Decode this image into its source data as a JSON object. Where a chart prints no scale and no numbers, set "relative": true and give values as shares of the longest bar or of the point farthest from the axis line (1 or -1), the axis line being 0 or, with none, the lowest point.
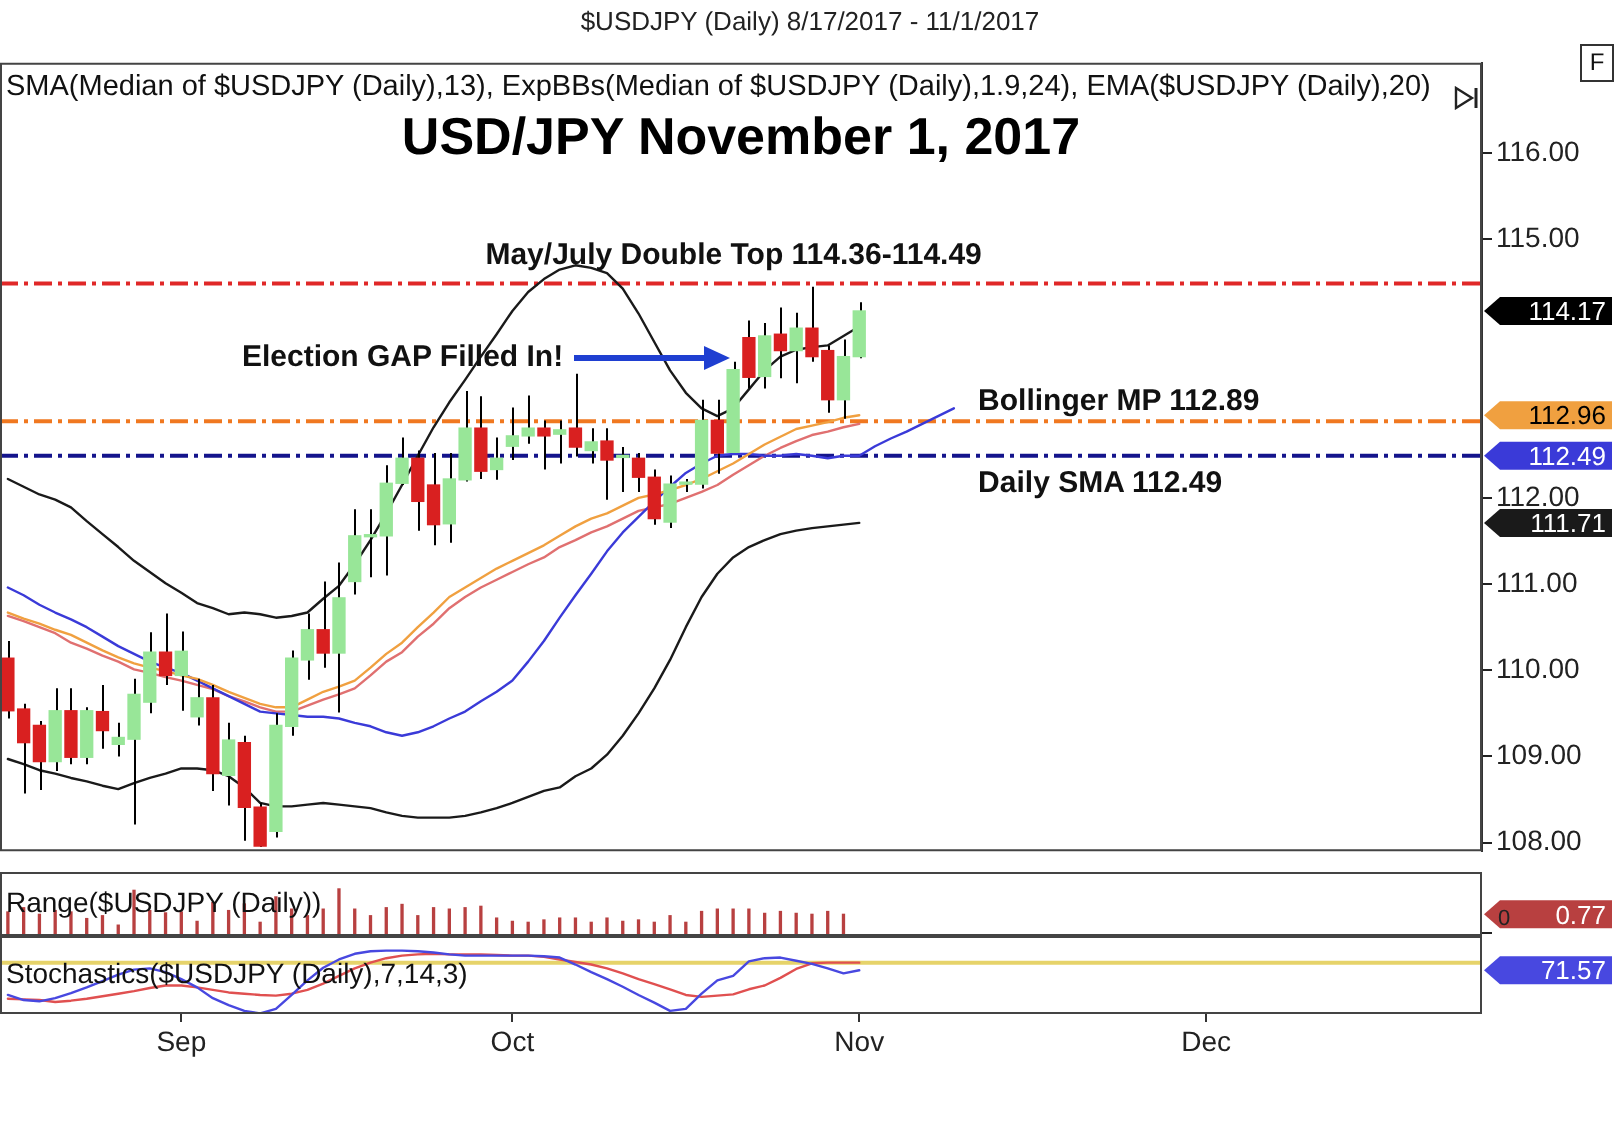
{
  "chart_data": [
    {
      "type": "candlestick",
      "title": "USD/JPY November 1, 2017",
      "subtitle": "$USDJPY (Daily) 8/17/2017 - 11/1/2017",
      "categories": [
        null,
        null,
        null,
        null,
        null,
        null,
        null,
        null,
        null,
        null,
        null,
        null,
        null,
        null,
        null,
        null,
        null,
        null,
        null,
        null,
        null,
        null,
        null,
        null,
        null,
        null,
        null,
        null,
        null,
        null,
        null,
        null,
        null,
        null,
        null,
        null,
        null,
        null,
        null,
        null,
        null,
        null,
        null,
        null,
        null,
        null,
        null,
        null,
        null,
        null,
        null,
        null,
        null,
        null,
        null,
        null,
        null,
        null,
        null,
        null,
        null,
        null,
        null,
        null,
        null,
        null,
        null,
        null,
        null,
        null,
        null,
        null,
        null,
        null,
        null,
        null,
        null,
        null,
        null,
        null,
        null,
        null,
        null,
        null,
        null,
        null,
        null,
        null,
        null,
        null,
        null,
        null,
        null,
        null
      ],
      "ohlc": [
        [
          110.14,
          110.34,
          109.44,
          109.53
        ],
        [
          109.55,
          109.61,
          108.57,
          109.16
        ],
        [
          109.36,
          109.41,
          108.61,
          108.94
        ],
        [
          108.94,
          109.79,
          108.83,
          109.53
        ],
        [
          109.53,
          109.79,
          108.91,
          108.99
        ],
        [
          108.99,
          109.57,
          108.91,
          109.53
        ],
        [
          109.52,
          109.83,
          109.09,
          109.3
        ],
        [
          109.14,
          109.39,
          109.0,
          109.22
        ],
        [
          109.2,
          109.9,
          108.21,
          109.72
        ],
        [
          109.63,
          110.44,
          109.5,
          110.21
        ],
        [
          110.21,
          110.66,
          109.83,
          109.94
        ],
        [
          109.94,
          110.45,
          109.53,
          110.22
        ],
        [
          109.46,
          109.9,
          109.36,
          109.68
        ],
        [
          109.68,
          109.83,
          108.6,
          108.8
        ],
        [
          108.78,
          109.39,
          108.43,
          109.19
        ],
        [
          109.16,
          109.24,
          108.02,
          108.41
        ],
        [
          108.41,
          108.46,
          107.95,
          107.96
        ],
        [
          108.13,
          109.5,
          108.06,
          109.36
        ],
        [
          109.35,
          110.23,
          109.24,
          110.14
        ],
        [
          110.12,
          110.66,
          109.89,
          110.47
        ],
        [
          110.47,
          111.03,
          110.03,
          110.2
        ],
        [
          110.2,
          111.25,
          109.51,
          110.84
        ],
        [
          111.03,
          111.87,
          110.88,
          111.56
        ],
        [
          111.55,
          111.87,
          111.08,
          111.57
        ],
        [
          111.56,
          112.38,
          111.1,
          112.17
        ],
        [
          112.17,
          112.7,
          112.15,
          112.46
        ],
        [
          112.46,
          112.55,
          111.62,
          111.96
        ],
        [
          112.15,
          112.52,
          111.45,
          111.69
        ],
        [
          111.7,
          112.52,
          111.48,
          112.22
        ],
        [
          112.21,
          113.24,
          112.19,
          112.81
        ],
        [
          112.81,
          113.18,
          112.22,
          112.31
        ],
        [
          112.33,
          112.7,
          112.21,
          112.46
        ],
        [
          112.6,
          113.05,
          112.44,
          112.72
        ],
        [
          112.72,
          113.19,
          112.63,
          112.81
        ],
        [
          112.81,
          112.9,
          112.33,
          112.72
        ],
        [
          112.74,
          112.9,
          112.4,
          112.79
        ],
        [
          112.81,
          113.44,
          112.48,
          112.59
        ],
        [
          112.55,
          112.81,
          112.4,
          112.65
        ],
        [
          112.66,
          112.81,
          111.98,
          112.44
        ],
        [
          112.47,
          112.59,
          112.07,
          112.48
        ],
        [
          112.46,
          112.52,
          112.07,
          112.24
        ],
        [
          112.24,
          112.33,
          111.69,
          111.76
        ],
        [
          111.72,
          112.26,
          111.65,
          112.16
        ],
        [
          112.16,
          112.22,
          112.07,
          112.17
        ],
        [
          112.16,
          113.14,
          112.11,
          112.9
        ],
        [
          112.9,
          113.14,
          112.28,
          112.52
        ],
        [
          112.53,
          113.58,
          112.52,
          113.49
        ],
        [
          113.86,
          114.06,
          113.27,
          113.4
        ],
        [
          113.41,
          114.03,
          113.27,
          113.88
        ],
        [
          113.9,
          114.21,
          113.39,
          113.71
        ],
        [
          113.71,
          114.15,
          113.33,
          113.97
        ],
        [
          113.97,
          114.45,
          113.58,
          113.64
        ],
        [
          113.71,
          113.77,
          112.99,
          113.14
        ],
        [
          113.14,
          113.84,
          112.92,
          113.64
        ],
        [
          113.64,
          114.27,
          113.62,
          114.17
        ],
        null,
        null,
        null,
        null,
        null,
        null,
        null,
        null,
        null,
        null,
        null,
        null,
        null,
        null,
        null,
        null,
        null,
        null,
        null,
        null,
        null,
        null,
        null,
        null,
        null,
        null,
        null,
        null,
        null,
        null,
        null,
        null,
        null,
        null,
        null,
        null,
        null,
        null,
        null
      ],
      "color": "#000000",
      "colors": [
        "#d92020",
        "#d92020",
        "#d92020",
        "#98e698",
        "#d92020",
        "#98e698",
        "#d92020",
        "#98e698",
        "#98e698",
        "#98e698",
        "#d92020",
        "#98e698",
        "#98e698",
        "#d92020",
        "#98e698",
        "#d92020",
        "#d92020",
        "#98e698",
        "#98e698",
        "#98e698",
        "#d92020",
        "#98e698",
        "#98e698",
        "#98e698",
        "#98e698",
        "#98e698",
        "#d92020",
        "#d92020",
        "#98e698",
        "#98e698",
        "#d92020",
        "#98e698",
        "#98e698",
        "#98e698",
        "#d92020",
        "#98e698",
        "#d92020",
        "#98e698",
        "#d92020",
        "#98e698",
        "#d92020",
        "#d92020",
        "#98e698",
        "#98e698",
        "#98e698",
        "#d92020",
        "#98e698",
        "#d92020",
        "#98e698",
        "#d92020",
        "#98e698",
        "#d92020",
        "#d92020",
        "#98e698",
        "#98e698",
        null,
        null,
        null,
        null,
        null,
        null,
        null,
        null,
        null,
        null,
        null,
        null,
        null,
        null,
        null,
        null,
        null,
        null,
        null,
        null,
        null,
        null,
        null,
        null,
        null,
        null,
        null,
        null,
        null,
        null,
        null,
        null,
        null,
        null,
        null,
        null,
        null,
        null,
        null
      ],
      "series": [
        {
          "type": "line",
          "color": "#1a1a1a",
          "values": [
            112.22,
            112.13,
            112.04,
            111.98,
            111.89,
            111.73,
            111.58,
            111.43,
            111.27,
            111.14,
            111.01,
            110.9,
            110.78,
            110.72,
            110.65,
            110.67,
            110.65,
            110.61,
            110.63,
            110.67,
            110.83,
            110.98,
            111.23,
            111.51,
            111.82,
            112.15,
            112.49,
            112.82,
            113.11,
            113.37,
            113.64,
            113.9,
            114.17,
            114.39,
            114.54,
            114.65,
            114.7,
            114.67,
            114.61,
            114.43,
            114.14,
            113.81,
            113.48,
            113.22,
            113.04,
            112.95,
            113.04,
            113.26,
            113.48,
            113.64,
            113.72,
            113.75,
            113.77,
            113.88,
            113.99,
            null,
            null,
            null,
            null,
            null,
            null,
            null,
            null,
            null,
            null,
            null,
            null,
            null,
            null,
            null,
            null,
            null,
            null,
            null,
            null,
            null,
            null,
            null,
            null,
            null,
            null,
            null,
            null,
            null,
            null,
            null,
            null,
            null,
            null,
            null,
            null,
            null,
            null,
            null
          ]
        },
        {
          "type": "line",
          "color": "#f0a040",
          "values": [
            110.67,
            110.6,
            110.54,
            110.47,
            110.41,
            110.32,
            110.23,
            110.15,
            110.08,
            110.03,
            109.99,
            109.94,
            109.9,
            109.83,
            109.75,
            109.68,
            109.61,
            109.57,
            109.57,
            109.66,
            109.75,
            109.81,
            109.88,
            110.03,
            110.19,
            110.32,
            110.5,
            110.67,
            110.85,
            110.96,
            111.07,
            111.18,
            111.27,
            111.36,
            111.45,
            111.56,
            111.67,
            111.76,
            111.82,
            111.91,
            112.0,
            112.04,
            112.09,
            112.15,
            112.22,
            112.31,
            112.4,
            112.51,
            112.62,
            112.71,
            112.8,
            112.84,
            112.88,
            112.93,
            112.96,
            null,
            null,
            null,
            null,
            null,
            null,
            null,
            null,
            null,
            null,
            null,
            null,
            null,
            null,
            null,
            null,
            null,
            null,
            null,
            null,
            null,
            null,
            null,
            null,
            null,
            null,
            null,
            null,
            null,
            null,
            null,
            null,
            null,
            null,
            null,
            null,
            null,
            null,
            null
          ]
        },
        {
          "type": "line",
          "color": "#1a1a1a",
          "values": [
            108.97,
            108.91,
            108.84,
            108.8,
            108.75,
            108.71,
            108.66,
            108.62,
            108.69,
            108.75,
            108.8,
            108.86,
            108.86,
            108.84,
            108.77,
            108.64,
            108.46,
            108.42,
            108.42,
            108.44,
            108.46,
            108.44,
            108.42,
            108.4,
            108.35,
            108.31,
            108.29,
            108.29,
            108.29,
            108.31,
            108.35,
            108.4,
            108.46,
            108.53,
            108.6,
            108.64,
            108.77,
            108.86,
            109.02,
            109.24,
            109.5,
            109.79,
            110.12,
            110.5,
            110.85,
            111.12,
            111.31,
            111.43,
            111.51,
            111.58,
            111.62,
            111.65,
            111.67,
            111.69,
            111.71,
            null,
            null,
            null,
            null,
            null,
            null,
            null,
            null,
            null,
            null,
            null,
            null,
            null,
            null,
            null,
            null,
            null,
            null,
            null,
            null,
            null,
            null,
            null,
            null,
            null,
            null,
            null,
            null,
            null,
            null,
            null,
            null,
            null,
            null,
            null,
            null,
            null,
            null,
            null
          ]
        },
        {
          "type": "line",
          "color": "#3a3ad8",
          "values": [
            110.96,
            110.87,
            110.76,
            110.67,
            110.59,
            110.5,
            110.39,
            110.28,
            110.19,
            110.1,
            110.03,
            109.97,
            109.88,
            109.79,
            109.7,
            109.61,
            109.52,
            109.5,
            109.48,
            109.46,
            109.46,
            109.44,
            109.39,
            109.35,
            109.28,
            109.24,
            109.28,
            109.35,
            109.44,
            109.52,
            109.64,
            109.75,
            109.88,
            110.1,
            110.34,
            110.61,
            110.87,
            111.12,
            111.38,
            111.6,
            111.78,
            111.96,
            112.13,
            112.29,
            112.4,
            112.49,
            112.51,
            112.51,
            112.49,
            112.49,
            112.51,
            112.49,
            112.46,
            112.49,
            112.49,
            112.6,
            112.69,
            112.77,
            112.86,
            112.95,
            113.04,
            null,
            null,
            null,
            null,
            null,
            null,
            null,
            null,
            null,
            null,
            null,
            null,
            null,
            null,
            null,
            null,
            null,
            null,
            null,
            null,
            null,
            null,
            null,
            null,
            null,
            null,
            null,
            null,
            null,
            null,
            null,
            null,
            null
          ]
        },
        {
          "type": "line",
          "color": "#e07070",
          "values": [
            110.63,
            110.57,
            110.5,
            110.43,
            110.32,
            110.25,
            110.17,
            110.1,
            110.01,
            109.97,
            109.92,
            109.88,
            109.83,
            109.78,
            109.7,
            109.64,
            109.57,
            109.52,
            109.52,
            109.59,
            109.66,
            109.72,
            109.79,
            109.94,
            110.1,
            110.21,
            110.39,
            110.54,
            110.72,
            110.85,
            110.96,
            111.05,
            111.14,
            111.23,
            111.31,
            111.43,
            111.51,
            111.6,
            111.67,
            111.76,
            111.85,
            111.89,
            111.93,
            112.0,
            112.07,
            112.15,
            112.27,
            112.38,
            112.49,
            112.58,
            112.66,
            112.73,
            112.77,
            112.82,
            112.86,
            null,
            null,
            null,
            null,
            null,
            null,
            null,
            null,
            null,
            null,
            null,
            null,
            null,
            null,
            null,
            null,
            null,
            null,
            null,
            null,
            null,
            null,
            null,
            null,
            null,
            null,
            null,
            null,
            null,
            null,
            null,
            null,
            null,
            null,
            null,
            null,
            null,
            null,
            null
          ]
        }
      ],
      "ylim": [
        107.9,
        117.05
      ],
      "yticks": [
        {
          "value": 108,
          "label": "108.00"
        },
        {
          "value": 109,
          "label": "109.00"
        },
        {
          "value": 110,
          "label": "110.00"
        },
        {
          "value": 111,
          "label": "111.00"
        },
        {
          "value": 112,
          "label": "112.00"
        },
        {
          "value": 115,
          "label": "115.00"
        },
        {
          "value": 116,
          "label": "116.00"
        }
      ],
      "tick_labels": "y",
      "ref_lines": [
        {
          "axis": "y",
          "value": 114.49,
          "label": "May/July Double Top 114.36-114.49",
          "color": "#e02828",
          "line_style": "dashed"
        },
        {
          "axis": "y",
          "value": 112.89,
          "label": "Bollinger MP 112.89",
          "color": "#f07820",
          "line_style": "dashed"
        },
        {
          "axis": "y",
          "value": 112.49,
          "label": "Daily SMA 112.49",
          "color": "#14148c",
          "line_style": "dashed"
        }
      ],
      "annotations": [
        "SMA(Median of $USDJPY (Daily),13), ExpBBs(Median of $USDJPY (Daily),1.9,24), EMA($USDJPY (Daily),20)",
        "Election GAP Filled In!",
        "F",
        "114.17",
        "112.96",
        "112.49",
        "111.71"
      ]
    },
    {
      "type": "bar",
      "title": "Range($USDJPY (Daily))",
      "relative": true,
      "categories": [
        null,
        null,
        null,
        null,
        null,
        null,
        null,
        null,
        null,
        null,
        null,
        null,
        null,
        null,
        null,
        null,
        null,
        null,
        null,
        null,
        null,
        null,
        null,
        null,
        null,
        null,
        null,
        null,
        null,
        null,
        null,
        null,
        null,
        null,
        null,
        null,
        null,
        null,
        null,
        null,
        null,
        null,
        null,
        null,
        null,
        null,
        null,
        null,
        null,
        null,
        null,
        null,
        null,
        null,
        null,
        null,
        null,
        null,
        null,
        null,
        null,
        null,
        null,
        null,
        null,
        null,
        null,
        null,
        null,
        null,
        null,
        null,
        null,
        null,
        null,
        null,
        null,
        null,
        null,
        null,
        null,
        null,
        null,
        null,
        null,
        null,
        null,
        null,
        null,
        null,
        null,
        null,
        null,
        null
      ],
      "values": [
        0.51,
        0.6,
        0.46,
        0.54,
        0.51,
        0.37,
        0.43,
        0.23,
        0.97,
        0.54,
        0.49,
        0.51,
        0.31,
        0.71,
        0.54,
        0.68,
        0.29,
        0.83,
        0.57,
        0.43,
        0.57,
        1.0,
        0.57,
        0.43,
        0.6,
        0.67,
        0.43,
        0.6,
        0.57,
        0.6,
        0.63,
        0.38,
        0.31,
        0.29,
        0.34,
        0.38,
        0.38,
        0.29,
        0.38,
        0.31,
        0.34,
        0.29,
        0.43,
        0.29,
        0.52,
        0.57,
        0.57,
        0.57,
        0.48,
        0.52,
        0.48,
        0.46,
        0.52,
        0.46,
        null,
        null,
        null,
        null,
        null,
        null,
        null,
        null,
        null,
        null,
        null,
        null,
        null,
        null,
        null,
        null,
        null,
        null,
        null,
        null,
        null,
        null,
        null,
        null,
        null,
        null,
        null,
        null,
        null,
        null,
        null,
        null,
        null,
        null,
        null,
        null,
        null,
        null,
        null,
        null
      ],
      "color": "#b84040",
      "tick_labels": false,
      "annotations": [
        "0.77",
        "0"
      ]
    },
    {
      "type": "line",
      "title": "Stochastics($USDJPY (Daily),7,14,3)",
      "relative": true,
      "categories": [
        null,
        null,
        null,
        null,
        null,
        null,
        null,
        null,
        null,
        null,
        null,
        "Sep",
        null,
        null,
        null,
        null,
        null,
        null,
        null,
        null,
        null,
        null,
        null,
        null,
        null,
        null,
        null,
        null,
        null,
        null,
        null,
        null,
        "Oct",
        null,
        null,
        null,
        null,
        null,
        null,
        null,
        null,
        null,
        null,
        null,
        null,
        null,
        null,
        null,
        null,
        null,
        null,
        null,
        null,
        null,
        "Nov",
        null,
        null,
        null,
        null,
        null,
        null,
        null,
        null,
        null,
        null,
        null,
        null,
        null,
        null,
        null,
        null,
        null,
        null,
        null,
        null,
        null,
        "Dec",
        null,
        null,
        null,
        null,
        null,
        null,
        null,
        null,
        null,
        null,
        null,
        null,
        null,
        null,
        null,
        null,
        null
      ],
      "series": [
        {
          "color": "#4848e0",
          "values": [
            0.3,
            0.22,
            0.2,
            0.25,
            0.33,
            0.42,
            0.52,
            0.62,
            0.7,
            0.72,
            0.66,
            0.55,
            0.42,
            0.25,
            0.14,
            0.05,
            0.01,
            0.08,
            0.3,
            0.53,
            0.73,
            0.86,
            0.95,
            0.99,
            1.0,
            1.0,
            0.99,
            0.97,
            0.94,
            0.92,
            0.92,
            0.92,
            0.92,
            0.92,
            0.91,
            0.89,
            0.78,
            0.66,
            0.55,
            0.43,
            0.3,
            0.18,
            0.05,
            0.08,
            0.32,
            0.53,
            0.6,
            0.83,
            0.88,
            0.89,
            0.84,
            0.79,
            0.72,
            0.64,
            0.69,
            null,
            null,
            null,
            null,
            null,
            null,
            null,
            null,
            null,
            null,
            null,
            null,
            null,
            null,
            null,
            null,
            null,
            null,
            null,
            null,
            null,
            null,
            null,
            null,
            null,
            null,
            null,
            null,
            null,
            null,
            null,
            null,
            null,
            null,
            null,
            null,
            null,
            null,
            null
          ]
        },
        {
          "color": "#e05050",
          "values": [
            0.24,
            0.23,
            0.22,
            0.19,
            0.21,
            0.24,
            0.28,
            0.32,
            0.36,
            0.41,
            0.45,
            0.45,
            0.42,
            0.38,
            0.34,
            0.32,
            0.3,
            0.29,
            0.32,
            0.38,
            0.48,
            0.6,
            0.72,
            0.81,
            0.88,
            0.92,
            0.94,
            0.95,
            0.94,
            0.94,
            0.94,
            0.93,
            0.92,
            0.92,
            0.9,
            0.86,
            0.82,
            0.78,
            0.72,
            0.64,
            0.55,
            0.47,
            0.39,
            0.3,
            0.27,
            0.29,
            0.31,
            0.39,
            0.45,
            0.57,
            0.71,
            0.8,
            0.81,
            0.81,
            0.81,
            null,
            null,
            null,
            null,
            null,
            null,
            null,
            null,
            null,
            null,
            null,
            null,
            null,
            null,
            null,
            null,
            null,
            null,
            null,
            null,
            null,
            null,
            null,
            null,
            null,
            null,
            null,
            null,
            null,
            null,
            null,
            null,
            null,
            null,
            null,
            null,
            null,
            null,
            null
          ]
        }
      ],
      "ref_lines": [
        {
          "axis": "y",
          "value": 0.81,
          "color": "#e6d36a"
        }
      ],
      "annotations": [
        "71.57"
      ],
      "tick_labels": "x"
    }
  ]
}
